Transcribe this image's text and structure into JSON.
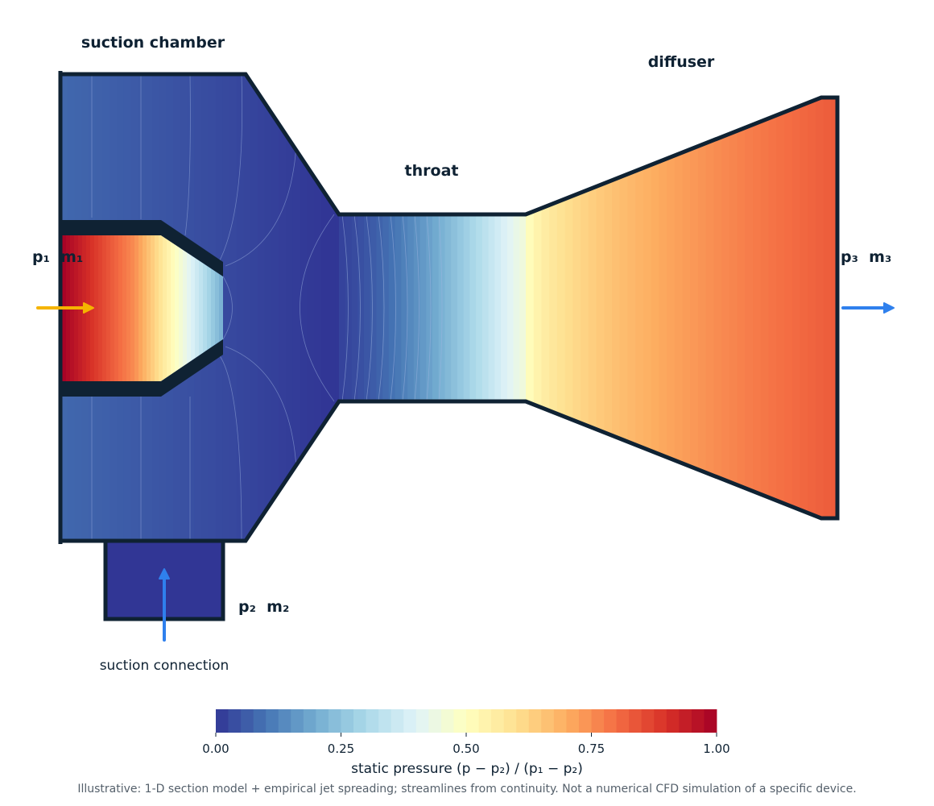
{
  "labels": {
    "suction_chamber": "suction chamber",
    "throat": "throat",
    "diffuser": "diffuser",
    "inlet_primary": "p₁  m₁",
    "outlet": "p₃  m₃",
    "inlet_secondary": "p₂  m₂",
    "suction_connection": "suction connection"
  },
  "colorbar": {
    "ticks": [
      "0.00",
      "0.25",
      "0.50",
      "0.75",
      "1.00"
    ],
    "label": "static pressure (p − p₂) / (p₁ − p₂)",
    "range": [
      0,
      1
    ],
    "colormap": [
      "#313695",
      "#4575b4",
      "#74add1",
      "#abd9e9",
      "#e0f3f8",
      "#ffffbf",
      "#fee090",
      "#fdae61",
      "#f46d43",
      "#d73027",
      "#a50026"
    ]
  },
  "footnote": "Illustrative: 1-D section model + empirical jet spreading; streamlines from continuity. Not a numerical CFD simulation of a specific device.",
  "colors": {
    "wall": "#0f2233",
    "primary_arrow": "#f5b400",
    "secondary_arrow": "#2f80ed",
    "outlet_arrow": "#2f80ed"
  }
}
